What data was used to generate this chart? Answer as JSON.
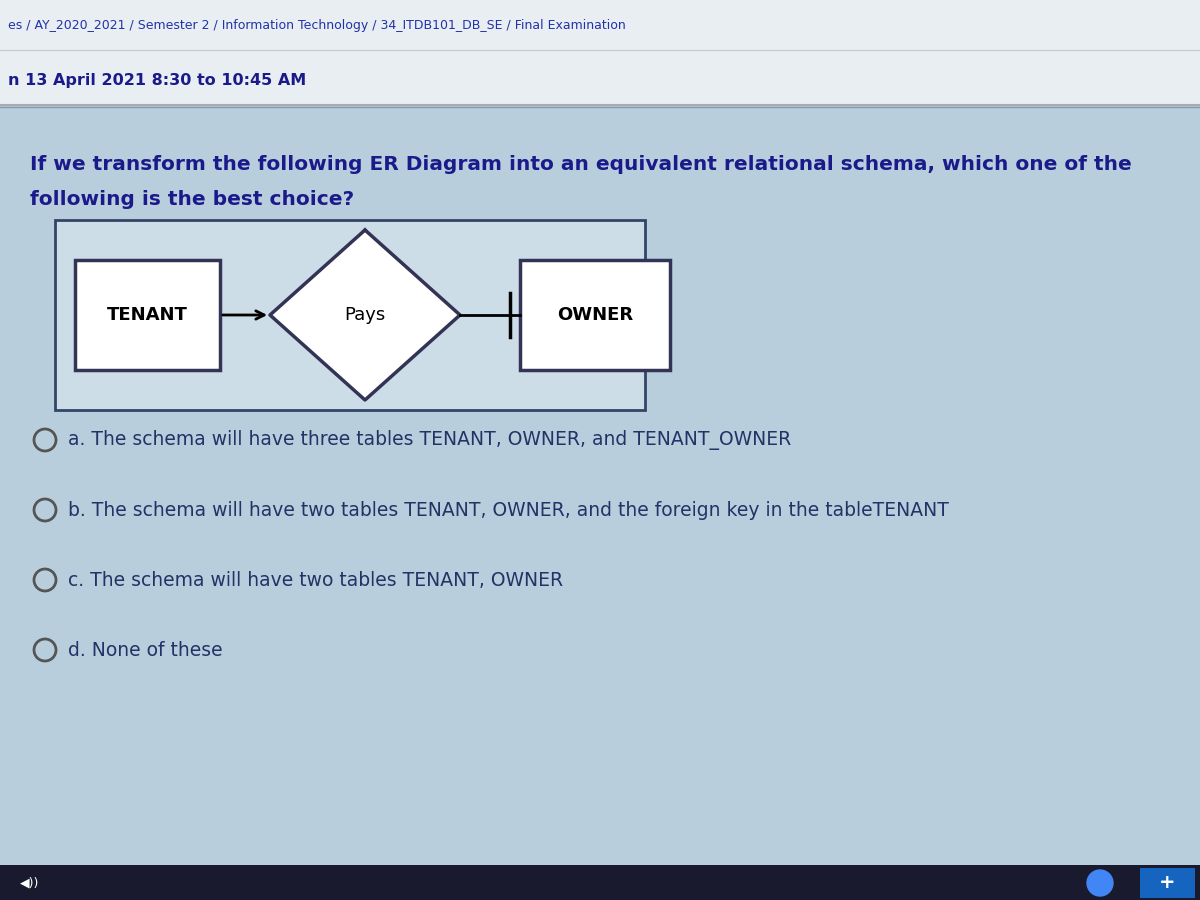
{
  "bg_header_color": "#e8eef2",
  "bg_main_color": "#b8cedd",
  "header_line1": "es / AY_2020_2021 / Semester 2 / Information Technology / 34_ITDB101_DB_SE / Final Examination",
  "header_line2": "n 13 April 2021 8:30 to 10:45 AM",
  "question_text_line1": "If we transform the following ER Diagram into an equivalent relational schema, which one of the",
  "question_text_line2": "following is the best choice?",
  "tenant_label": "TENANT",
  "relationship_label": "Pays",
  "owner_label": "OWNER",
  "option_a": "a. The schema will have three tables TENANT, OWNER, and TENANT_OWNER",
  "option_b": "b. The schema will have two tables TENANT, OWNER, and the foreign key in the tableTENANT",
  "option_c": "c. The schema will have two tables TENANT, OWNER",
  "option_d": "d. None of these",
  "text_color_dark": "#1a1a8a",
  "text_color_header": "#2233aa",
  "box_border_color": "#333355",
  "diagram_bg": "#ccdde8",
  "diagram_border": "#334466",
  "header_border_color": "#aabbcc",
  "radio_color": "#555555",
  "option_text_color": "#223366"
}
